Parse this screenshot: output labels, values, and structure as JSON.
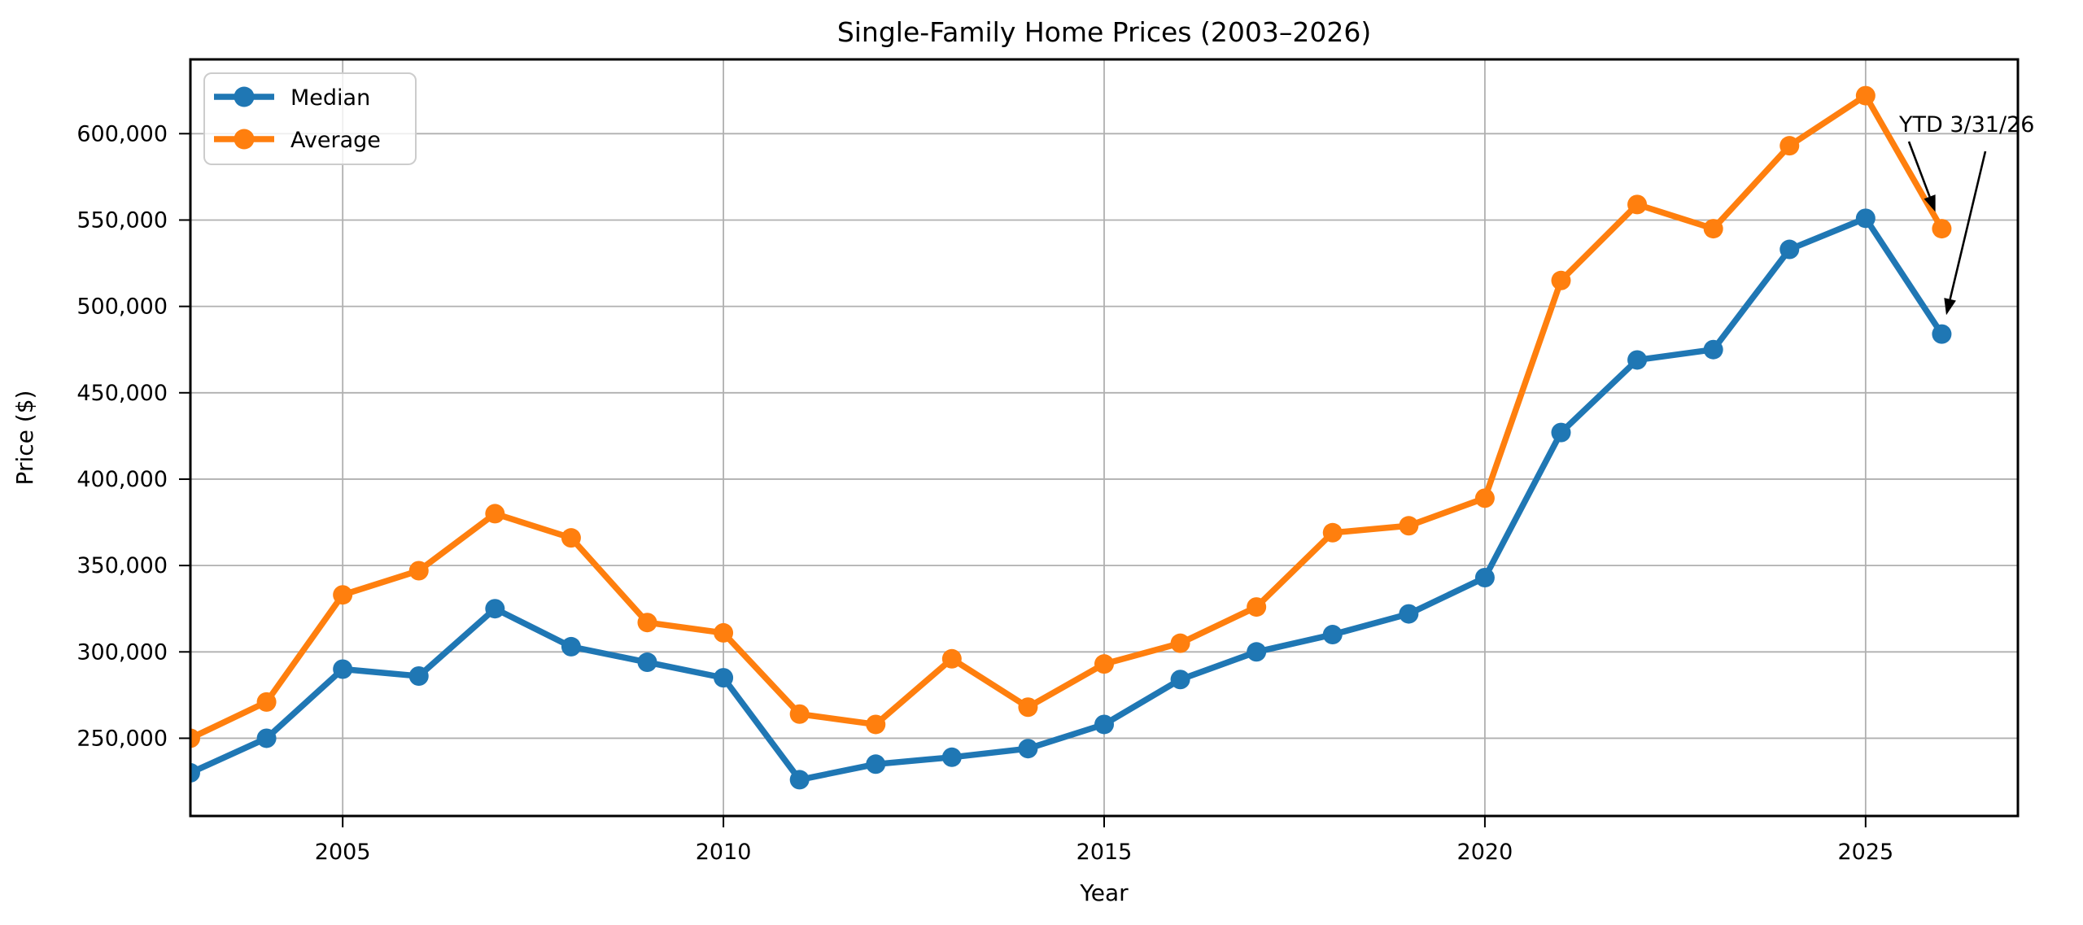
{
  "figure": {
    "background": "#ffffff",
    "title": "Single-Family Home Prices (2003–2026)"
  },
  "chart_data": {
    "type": "line",
    "title": "Single-Family Home Prices (2003–2026)",
    "xlabel": "Year",
    "ylabel": "Price ($)",
    "x": [
      2003,
      2004,
      2005,
      2006,
      2007,
      2008,
      2009,
      2010,
      2011,
      2012,
      2013,
      2014,
      2015,
      2016,
      2017,
      2018,
      2019,
      2020,
      2021,
      2022,
      2023,
      2024,
      2025,
      2026
    ],
    "series": [
      {
        "name": "Median",
        "color": "#1f77b4",
        "values": [
          230000,
          250000,
          290000,
          286000,
          325000,
          303000,
          294000,
          285000,
          226000,
          235000,
          239000,
          244000,
          258000,
          284000,
          300000,
          310000,
          322000,
          343000,
          427000,
          469000,
          475000,
          533000,
          551000,
          484000
        ]
      },
      {
        "name": "Average",
        "color": "#ff7f0e",
        "values": [
          250000,
          271000,
          333000,
          347000,
          380000,
          366000,
          317000,
          311000,
          264000,
          258000,
          296000,
          268000,
          293000,
          305000,
          326000,
          369000,
          373000,
          389000,
          515000,
          559000,
          545000,
          593000,
          622000,
          545000
        ]
      }
    ],
    "xlim": [
      2003,
      2027
    ],
    "ylim": [
      205000,
      643000
    ],
    "xticks": [
      2005,
      2010,
      2015,
      2020,
      2025
    ],
    "yticks": [
      250000,
      300000,
      350000,
      400000,
      450000,
      500000,
      550000,
      600000
    ],
    "grid": true,
    "grid_color": "#b0b0b0",
    "legend_position": "upper left",
    "annotation": {
      "text": "YTD 3/31/26",
      "target_year": 2026,
      "arrow_color": "#000000"
    }
  }
}
